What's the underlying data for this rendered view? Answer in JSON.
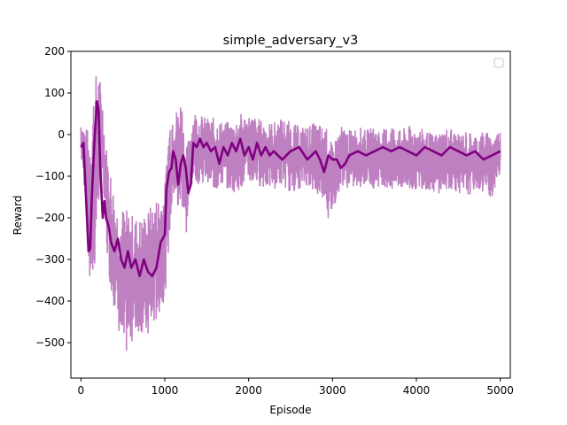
{
  "chart_data": {
    "type": "line",
    "title": "simple_adversary_v3",
    "xlabel": "Episode",
    "ylabel": "Reward",
    "xlim": [
      -120,
      5120
    ],
    "ylim": [
      -585,
      200
    ],
    "xticks": [
      0,
      1000,
      2000,
      3000,
      4000,
      5000
    ],
    "yticks": [
      200,
      100,
      0,
      -100,
      -200,
      -300,
      -400,
      -500
    ],
    "legend": {
      "placement": "top-right",
      "entries": []
    },
    "grid": false,
    "series": [
      {
        "role": "raw",
        "color": "#bf80c2",
        "style": "noisy band",
        "x": [
          0,
          50,
          100,
          150,
          200,
          250,
          300,
          350,
          400,
          450,
          500,
          600,
          700,
          800,
          900,
          1000,
          1050,
          1100,
          1150,
          1200,
          1250,
          1300,
          1350,
          1400,
          1500,
          1600,
          1700,
          1800,
          1900,
          2000,
          2100,
          2200,
          2300,
          2400,
          2500,
          2600,
          2700,
          2800,
          2900,
          2950,
          3000,
          3050,
          3100,
          3200,
          3300,
          3400,
          3500,
          3600,
          3700,
          3800,
          3900,
          4000,
          4100,
          4200,
          4300,
          4400,
          4500,
          4600,
          4700,
          4800,
          4900,
          5000
        ],
        "upper": [
          40,
          20,
          10,
          120,
          165,
          110,
          -20,
          -80,
          -140,
          -180,
          -170,
          -190,
          -200,
          -180,
          -150,
          -120,
          40,
          80,
          60,
          100,
          -40,
          10,
          60,
          50,
          40,
          40,
          30,
          30,
          50,
          50,
          40,
          30,
          30,
          40,
          30,
          20,
          20,
          30,
          20,
          10,
          -30,
          0,
          20,
          10,
          20,
          10,
          20,
          10,
          30,
          10,
          20,
          20,
          10,
          0,
          10,
          20,
          0,
          10,
          0,
          10,
          0,
          10
        ],
        "lower": [
          -60,
          -150,
          -380,
          -370,
          -190,
          -110,
          -280,
          -370,
          -420,
          -480,
          -550,
          -500,
          -470,
          -500,
          -450,
          -390,
          -260,
          -150,
          -200,
          -170,
          -250,
          -140,
          -100,
          -120,
          -110,
          -140,
          -120,
          -140,
          -130,
          -120,
          -120,
          -130,
          -130,
          -120,
          -140,
          -130,
          -120,
          -150,
          -150,
          -210,
          -190,
          -150,
          -120,
          -130,
          -130,
          -120,
          -130,
          -120,
          -140,
          -130,
          -140,
          -130,
          -130,
          -140,
          -140,
          -130,
          -140,
          -150,
          -130,
          -140,
          -150,
          -90
        ]
      },
      {
        "role": "smoothed",
        "color": "#800080",
        "style": "thick line",
        "x": [
          0,
          30,
          60,
          90,
          110,
          130,
          160,
          190,
          210,
          230,
          260,
          280,
          300,
          330,
          360,
          400,
          440,
          480,
          520,
          560,
          600,
          650,
          700,
          750,
          800,
          850,
          900,
          950,
          1000,
          1020,
          1050,
          1080,
          1100,
          1130,
          1160,
          1190,
          1220,
          1250,
          1280,
          1310,
          1340,
          1380,
          1420,
          1460,
          1500,
          1550,
          1600,
          1650,
          1700,
          1750,
          1800,
          1850,
          1900,
          1950,
          2000,
          2050,
          2100,
          2150,
          2200,
          2250,
          2300,
          2400,
          2500,
          2600,
          2700,
          2800,
          2850,
          2900,
          2950,
          3000,
          3050,
          3100,
          3150,
          3200,
          3300,
          3400,
          3500,
          3600,
          3700,
          3800,
          3900,
          4000,
          4100,
          4200,
          4300,
          4400,
          4500,
          4600,
          4700,
          4800,
          4900,
          5000
        ],
        "y": [
          -30,
          -20,
          -150,
          -280,
          -275,
          -150,
          -20,
          80,
          60,
          -80,
          -200,
          -160,
          -200,
          -220,
          -260,
          -280,
          -250,
          -300,
          -320,
          -280,
          -320,
          -300,
          -340,
          -300,
          -330,
          -340,
          -320,
          -260,
          -240,
          -130,
          -90,
          -80,
          -40,
          -60,
          -120,
          -70,
          -50,
          -80,
          -140,
          -120,
          -20,
          -30,
          -10,
          -30,
          -20,
          -40,
          -30,
          -70,
          -30,
          -50,
          -20,
          -40,
          -10,
          -50,
          -30,
          -60,
          -20,
          -50,
          -30,
          -50,
          -40,
          -60,
          -40,
          -30,
          -60,
          -40,
          -60,
          -90,
          -50,
          -60,
          -60,
          -80,
          -70,
          -50,
          -40,
          -50,
          -40,
          -30,
          -40,
          -30,
          -40,
          -50,
          -30,
          -40,
          -50,
          -30,
          -40,
          -50,
          -40,
          -60,
          -50,
          -40
        ]
      }
    ]
  }
}
